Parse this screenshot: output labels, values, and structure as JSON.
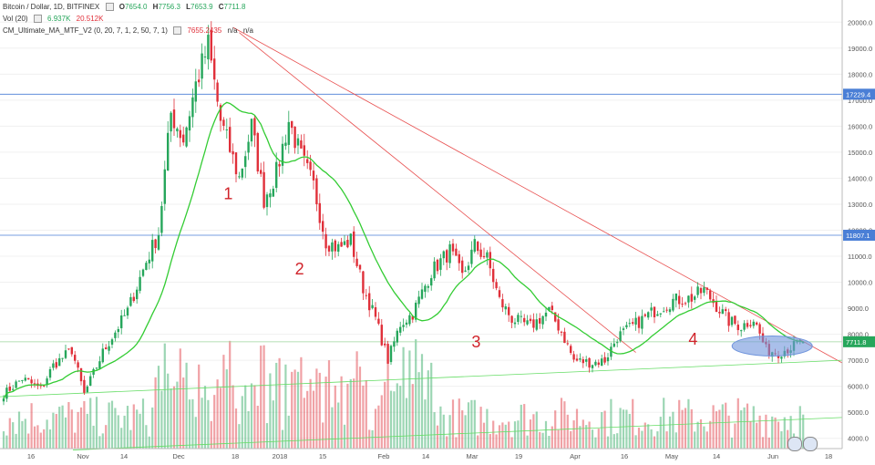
{
  "header": {
    "symbol": "Bitcoin / Dollar, 1D, BITFINEX",
    "o_label": "O",
    "o": "7654.0",
    "h_label": "H",
    "h": "7756.3",
    "l_label": "L",
    "l": "7653.9",
    "c_label": "C",
    "c": "7711.8",
    "vol_label": "Vol (20)",
    "vol1": "6.937K",
    "vol2": "20.512K",
    "ma_label": "CM_Ultimate_MA_MTF_V2 (0, 20, 7, 1, 2, 50, 7, 1)",
    "ma_value": "7655.2435",
    "na1": "n/a",
    "na2": "n/a"
  },
  "colors": {
    "up": "#26a65b",
    "down": "#e0303a",
    "ma_green": "#33cc33",
    "ma_red": "#e0303a",
    "hline": "#4a7fd6",
    "trend": "#e85050",
    "support": "#66dd66",
    "ellipse": "#6f94dc"
  },
  "chart_data": {
    "type": "candlestick",
    "price_axis": {
      "min": 3500,
      "max": 20500,
      "ticks": [
        4000,
        5000,
        6000,
        7000,
        8000,
        9000,
        10000,
        11000,
        12000,
        13000,
        14000,
        15000,
        16000,
        17000,
        18000,
        19000,
        20000
      ]
    },
    "time_axis": [
      "16",
      "Nov",
      "14",
      "Dec",
      "18",
      "2018",
      "15",
      "Feb",
      "14",
      "Mar",
      "19",
      "Apr",
      "16",
      "May",
      "14",
      "Jun",
      "18"
    ],
    "horizontal_levels": [
      {
        "value": 17229.4,
        "label": "17229.4"
      },
      {
        "value": 11807.1,
        "label": "11807.1"
      },
      {
        "value": 7711.8,
        "label": "7711.8"
      }
    ],
    "anchors": [
      [
        0,
        5700
      ],
      [
        6,
        6300
      ],
      [
        12,
        5900
      ],
      [
        16,
        6800
      ],
      [
        22,
        7400
      ],
      [
        26,
        5700
      ],
      [
        32,
        7300
      ],
      [
        40,
        8900
      ],
      [
        46,
        10800
      ],
      [
        50,
        11900
      ],
      [
        54,
        16500
      ],
      [
        58,
        15500
      ],
      [
        62,
        17600
      ],
      [
        66,
        19100
      ],
      [
        70,
        16200
      ],
      [
        76,
        14000
      ],
      [
        80,
        16000
      ],
      [
        84,
        13200
      ],
      [
        88,
        14200
      ],
      [
        92,
        16200
      ],
      [
        96,
        14800
      ],
      [
        100,
        13700
      ],
      [
        104,
        11600
      ],
      [
        108,
        11300
      ],
      [
        112,
        11600
      ],
      [
        116,
        9800
      ],
      [
        120,
        8600
      ],
      [
        124,
        7000
      ],
      [
        128,
        8400
      ],
      [
        132,
        8800
      ],
      [
        138,
        10400
      ],
      [
        144,
        11200
      ],
      [
        148,
        10200
      ],
      [
        152,
        11400
      ],
      [
        156,
        10900
      ],
      [
        160,
        9300
      ],
      [
        164,
        8600
      ],
      [
        170,
        8300
      ],
      [
        176,
        8900
      ],
      [
        180,
        8100
      ],
      [
        184,
        7000
      ],
      [
        190,
        6900
      ],
      [
        194,
        7000
      ],
      [
        198,
        7900
      ],
      [
        204,
        8400
      ],
      [
        210,
        8900
      ],
      [
        216,
        9300
      ],
      [
        222,
        9400
      ],
      [
        226,
        9700
      ],
      [
        230,
        9100
      ],
      [
        234,
        8500
      ],
      [
        238,
        8300
      ],
      [
        242,
        8600
      ],
      [
        246,
        7400
      ],
      [
        250,
        7300
      ],
      [
        254,
        7500
      ],
      [
        258,
        7700
      ]
    ],
    "volume_series": "Vol (20)",
    "annotations": [
      {
        "text": "1",
        "bar": 71,
        "price": 13200
      },
      {
        "text": "2",
        "bar": 94,
        "price": 10300
      },
      {
        "text": "3",
        "bar": 151,
        "price": 7500
      },
      {
        "text": "4",
        "bar": 221,
        "price": 7600
      }
    ]
  }
}
